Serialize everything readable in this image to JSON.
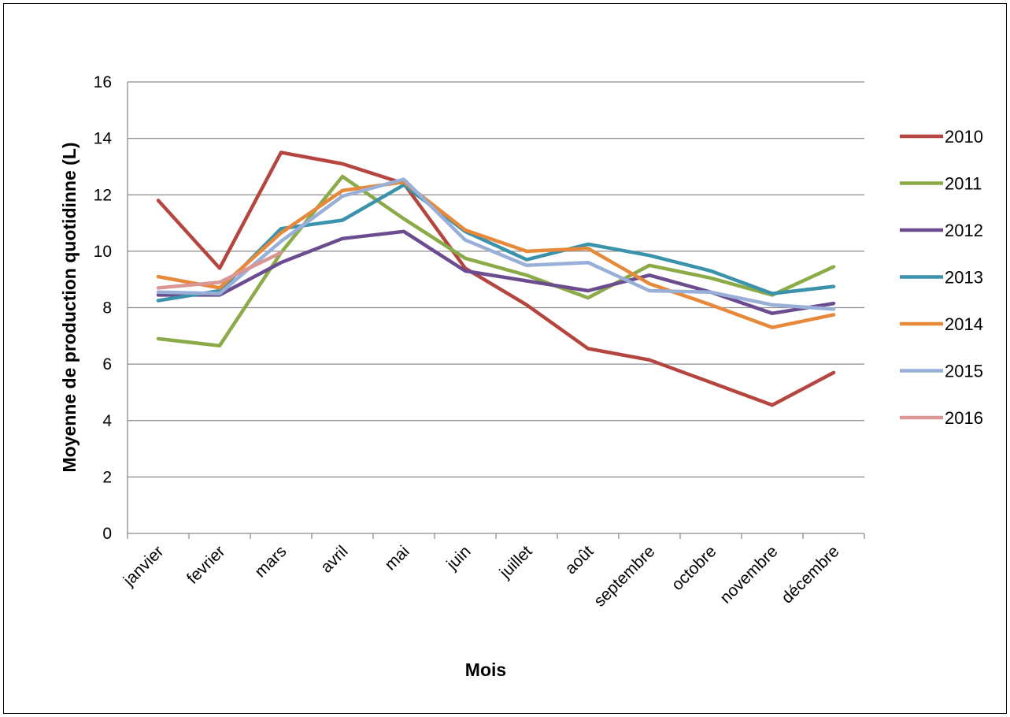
{
  "chart_data": {
    "type": "line",
    "title": "",
    "xlabel": "Mois",
    "ylabel": "Moyenne de production quotidinne (L)",
    "ylim": [
      0,
      16
    ],
    "yticks": [
      0,
      2,
      4,
      6,
      8,
      10,
      12,
      14,
      16
    ],
    "grid": true,
    "legend_position": "right",
    "categories": [
      "janvier",
      "fevrier",
      "mars",
      "avril",
      "mai",
      "juin",
      "juillet",
      "août",
      "septembre",
      "octobre",
      "novembre",
      "décembre"
    ],
    "series": [
      {
        "name": "2010",
        "color": "#b5453f",
        "values": [
          11.8,
          9.4,
          13.5,
          13.1,
          12.4,
          9.4,
          8.1,
          6.55,
          6.15,
          5.35,
          4.55,
          5.7
        ]
      },
      {
        "name": "2011",
        "color": "#8aab47",
        "values": [
          6.9,
          6.65,
          9.95,
          12.65,
          11.15,
          9.75,
          9.15,
          8.35,
          9.5,
          9.05,
          8.45,
          9.45
        ]
      },
      {
        "name": "2012",
        "color": "#6b4c8e",
        "values": [
          8.45,
          8.45,
          9.6,
          10.45,
          10.7,
          9.3,
          8.95,
          8.6,
          9.15,
          8.55,
          7.8,
          8.15
        ]
      },
      {
        "name": "2013",
        "color": "#3a93aa",
        "values": [
          8.25,
          8.6,
          10.8,
          11.1,
          12.35,
          10.7,
          9.7,
          10.25,
          9.85,
          9.3,
          8.5,
          8.75
        ]
      },
      {
        "name": "2014",
        "color": "#e6893a",
        "values": [
          9.1,
          8.7,
          10.65,
          12.15,
          12.45,
          10.75,
          10.0,
          10.1,
          8.85,
          8.1,
          7.3,
          7.75
        ]
      },
      {
        "name": "2015",
        "color": "#98b0d8",
        "values": [
          8.55,
          8.5,
          10.35,
          11.95,
          12.55,
          10.4,
          9.5,
          9.6,
          8.6,
          8.55,
          8.1,
          7.95
        ]
      },
      {
        "name": "2016",
        "color": "#d99694",
        "values": [
          8.7,
          8.9,
          9.95,
          null,
          null,
          null,
          null,
          null,
          null,
          null,
          null,
          null
        ]
      }
    ]
  }
}
